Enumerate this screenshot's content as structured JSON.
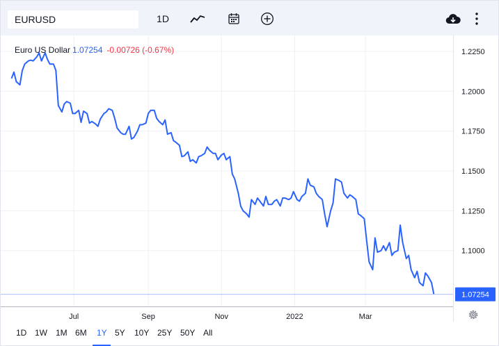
{
  "toolbar": {
    "symbol": "EURUSD",
    "interval": "1D",
    "icons": [
      "line-chart-icon",
      "calendar-icon",
      "plus-circle-icon",
      "cloud-download-icon",
      "more-vertical-icon"
    ]
  },
  "legend": {
    "name": "Euro US Dollar",
    "last": "1.07254",
    "change": "-0.00726 (-0.67%)"
  },
  "colors": {
    "line": "#2962ff",
    "down": "#f23645",
    "grid": "#eef0f6",
    "axis_text": "#131722"
  },
  "timeframes": {
    "items": [
      "1D",
      "1W",
      "1M",
      "6M",
      "1Y",
      "5Y",
      "10Y",
      "25Y",
      "50Y",
      "All"
    ],
    "active": "1Y"
  },
  "chart_data": {
    "type": "line",
    "title": "Euro US Dollar",
    "grid": true,
    "y_ticks": [
      "1.2250",
      "1.2000",
      "1.1750",
      "1.1500",
      "1.1250",
      "1.1000"
    ],
    "x_ticks": [
      "Jul",
      "Sep",
      "Nov",
      "2022",
      "Mar"
    ],
    "ylim": [
      1.065,
      1.235
    ],
    "last_price_label": "1.07254",
    "series": [
      {
        "x": [
          "2021-05-10",
          "2021-05-12",
          "2021-05-14",
          "2021-05-17",
          "2021-05-19",
          "2021-05-21",
          "2021-05-24",
          "2021-05-26",
          "2021-05-28",
          "2021-05-31",
          "2021-06-02",
          "2021-06-04",
          "2021-06-07",
          "2021-06-09",
          "2021-06-11",
          "2021-06-14",
          "2021-06-16",
          "2021-06-18",
          "2021-06-21",
          "2021-06-23",
          "2021-06-25",
          "2021-06-28",
          "2021-06-30",
          "2021-07-02",
          "2021-07-05",
          "2021-07-07",
          "2021-07-09",
          "2021-07-12",
          "2021-07-14",
          "2021-07-16",
          "2021-07-19",
          "2021-07-21",
          "2021-07-23",
          "2021-07-26",
          "2021-07-28",
          "2021-07-30",
          "2021-08-02",
          "2021-08-04",
          "2021-08-06",
          "2021-08-09",
          "2021-08-11",
          "2021-08-13",
          "2021-08-16",
          "2021-08-18",
          "2021-08-20",
          "2021-08-23",
          "2021-08-25",
          "2021-08-27",
          "2021-08-30",
          "2021-09-01",
          "2021-09-03",
          "2021-09-06",
          "2021-09-08",
          "2021-09-10",
          "2021-09-13",
          "2021-09-15",
          "2021-09-17",
          "2021-09-20",
          "2021-09-22",
          "2021-09-24",
          "2021-09-27",
          "2021-09-29",
          "2021-10-01",
          "2021-10-04",
          "2021-10-06",
          "2021-10-08",
          "2021-10-11",
          "2021-10-13",
          "2021-10-15",
          "2021-10-18",
          "2021-10-20",
          "2021-10-22",
          "2021-10-25",
          "2021-10-27",
          "2021-10-29",
          "2021-11-01",
          "2021-11-03",
          "2021-11-05",
          "2021-11-08",
          "2021-11-10",
          "2021-11-12",
          "2021-11-15",
          "2021-11-17",
          "2021-11-19",
          "2021-11-22",
          "2021-11-24",
          "2021-11-26",
          "2021-11-29",
          "2021-12-01",
          "2021-12-03",
          "2021-12-06",
          "2021-12-08",
          "2021-12-10",
          "2021-12-13",
          "2021-12-15",
          "2021-12-17",
          "2021-12-20",
          "2021-12-22",
          "2021-12-24",
          "2021-12-27",
          "2021-12-29",
          "2021-12-31",
          "2022-01-03",
          "2022-01-05",
          "2022-01-07",
          "2022-01-10",
          "2022-01-12",
          "2022-01-14",
          "2022-01-17",
          "2022-01-19",
          "2022-01-21",
          "2022-01-24",
          "2022-01-26",
          "2022-01-28",
          "2022-01-31",
          "2022-02-02",
          "2022-02-04",
          "2022-02-07",
          "2022-02-09",
          "2022-02-11",
          "2022-02-14",
          "2022-02-16",
          "2022-02-18",
          "2022-02-21",
          "2022-02-23",
          "2022-02-25",
          "2022-02-28",
          "2022-03-02",
          "2022-03-04",
          "2022-03-07",
          "2022-03-09",
          "2022-03-11",
          "2022-03-14",
          "2022-03-16",
          "2022-03-18",
          "2022-03-21",
          "2022-03-23",
          "2022-03-25",
          "2022-03-28",
          "2022-03-30",
          "2022-04-01",
          "2022-04-04",
          "2022-04-06",
          "2022-04-08",
          "2022-04-11",
          "2022-04-13",
          "2022-04-15",
          "2022-04-18",
          "2022-04-20",
          "2022-04-22",
          "2022-04-25",
          "2022-04-27"
        ],
        "y": [
          1.208,
          1.212,
          1.206,
          1.204,
          1.213,
          1.217,
          1.219,
          1.2195,
          1.219,
          1.2215,
          1.224,
          1.219,
          1.224,
          1.22,
          1.217,
          1.217,
          1.213,
          1.191,
          1.187,
          1.192,
          1.1935,
          1.1925,
          1.186,
          1.186,
          1.188,
          1.1805,
          1.1875,
          1.186,
          1.18,
          1.181,
          1.1795,
          1.178,
          1.1825,
          1.186,
          1.187,
          1.189,
          1.188,
          1.183,
          1.177,
          1.174,
          1.173,
          1.173,
          1.178,
          1.17,
          1.171,
          1.175,
          1.179,
          1.179,
          1.18,
          1.186,
          1.188,
          1.188,
          1.183,
          1.181,
          1.179,
          1.182,
          1.173,
          1.174,
          1.169,
          1.168,
          1.166,
          1.159,
          1.1595,
          1.162,
          1.156,
          1.157,
          1.155,
          1.159,
          1.1595,
          1.161,
          1.165,
          1.163,
          1.161,
          1.161,
          1.157,
          1.16,
          1.161,
          1.157,
          1.159,
          1.148,
          1.145,
          1.136,
          1.128,
          1.125,
          1.123,
          1.121,
          1.132,
          1.129,
          1.133,
          1.131,
          1.128,
          1.134,
          1.129,
          1.129,
          1.131,
          1.132,
          1.128,
          1.133,
          1.133,
          1.132,
          1.133,
          1.137,
          1.132,
          1.131,
          1.134,
          1.136,
          1.145,
          1.141,
          1.14,
          1.136,
          1.134,
          1.132,
          1.123,
          1.115,
          1.125,
          1.13,
          1.145,
          1.144,
          1.143,
          1.136,
          1.133,
          1.135,
          1.134,
          1.132,
          1.123,
          1.122,
          1.12,
          1.106,
          1.093,
          1.088,
          1.108,
          1.099,
          1.1,
          1.103,
          1.1,
          1.105,
          1.097,
          1.099,
          1.1,
          1.116,
          1.105,
          1.095,
          1.097,
          1.088,
          1.083,
          1.087,
          1.08,
          1.078,
          1.086,
          1.084,
          1.08,
          1.0726
        ]
      }
    ]
  }
}
